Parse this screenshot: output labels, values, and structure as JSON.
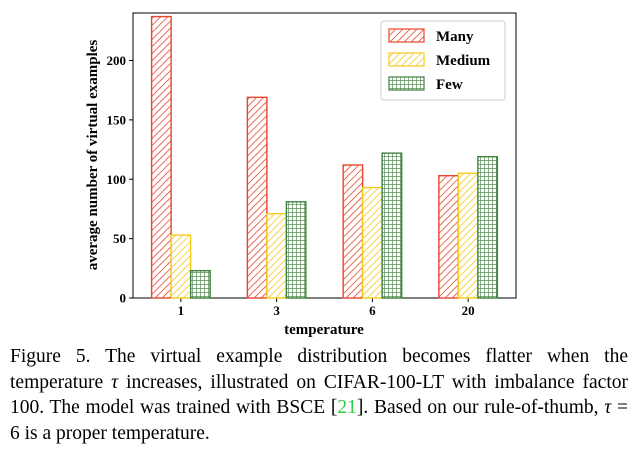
{
  "chart_data": {
    "type": "bar",
    "xlabel": "temperature",
    "ylabel": "average number of virtual examples",
    "categories": [
      "1",
      "3",
      "6",
      "20"
    ],
    "yticks": [
      0,
      50,
      100,
      150,
      200
    ],
    "ylim": [
      0,
      240
    ],
    "legend_position": "top-right",
    "series": [
      {
        "name": "Many",
        "values": [
          237,
          169,
          112,
          103
        ],
        "color": "#e8452e",
        "hatch": "diagonal"
      },
      {
        "name": "Medium",
        "values": [
          53,
          71,
          93,
          105
        ],
        "color": "#f2cc1a",
        "hatch": "diagonal"
      },
      {
        "name": "Few",
        "values": [
          23,
          81,
          122,
          119
        ],
        "color": "#3f7f3f",
        "hatch": "grid"
      }
    ]
  },
  "caption": {
    "p1": "Figure 5. The virtual example distribution becomes flatter when the temperature ",
    "tau1": "τ",
    "p2": " increases, illustrated on CIFAR-100-LT with imbalance factor 100. The model was trained with BSCE [",
    "ref": "21",
    "p3": "]. Based on our rule-of-thumb, ",
    "tau2": "τ",
    "p4": " = 6 is a proper temperature."
  }
}
